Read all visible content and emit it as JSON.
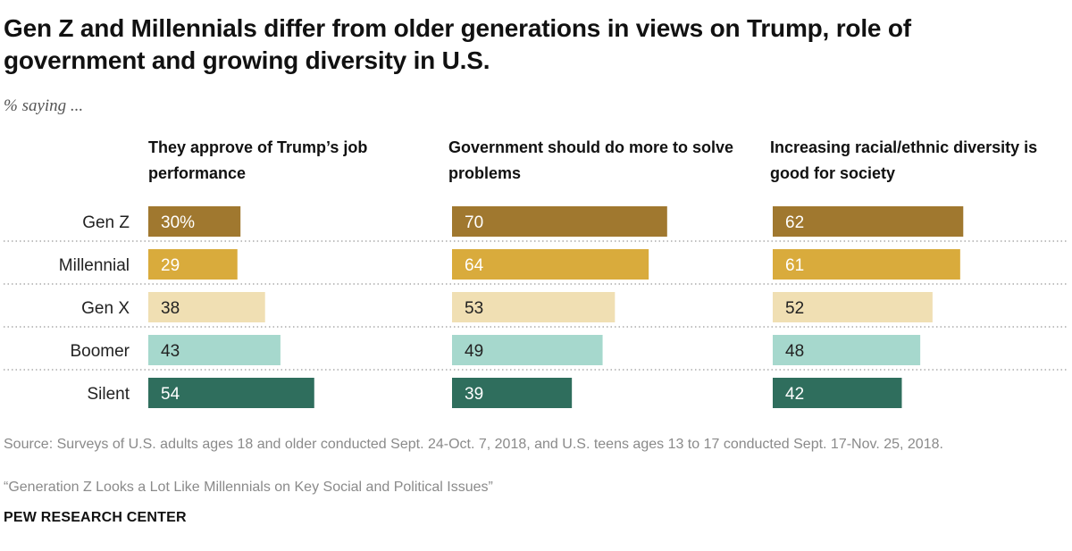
{
  "title": "Gen Z and Millennials differ from older generations in views on Trump, role of government and growing diversity in U.S.",
  "subtitle": "% saying ...",
  "source": "Source: Surveys of U.S. adults ages 18 and older conducted Sept. 24-Oct. 7, 2018, and U.S. teens ages 13 to 17 conducted Sept. 17-Nov. 25, 2018.",
  "report": "“Generation Z Looks a Lot Like Millennials on Key Social and Political Issues”",
  "organization": "PEW RESEARCH CENTER",
  "chart_data": [
    {
      "type": "bar",
      "orientation": "horizontal",
      "title": "They approve of Trump’s job performance",
      "categories": [
        "Gen Z",
        "Millennial",
        "Gen X",
        "Boomer",
        "Silent"
      ],
      "values": [
        30,
        29,
        38,
        43,
        54
      ],
      "value_labels": [
        "30%",
        "29",
        "38",
        "43",
        "54"
      ],
      "xlim": [
        0,
        100
      ]
    },
    {
      "type": "bar",
      "orientation": "horizontal",
      "title": "Government should do more to solve problems",
      "categories": [
        "Gen Z",
        "Millennial",
        "Gen X",
        "Boomer",
        "Silent"
      ],
      "values": [
        70,
        64,
        53,
        49,
        39
      ],
      "value_labels": [
        "70",
        "64",
        "53",
        "49",
        "39"
      ],
      "xlim": [
        0,
        100
      ]
    },
    {
      "type": "bar",
      "orientation": "horizontal",
      "title": "Increasing racial/ethnic diversity is good for society",
      "categories": [
        "Gen Z",
        "Millennial",
        "Gen X",
        "Boomer",
        "Silent"
      ],
      "values": [
        62,
        61,
        52,
        48,
        42
      ],
      "value_labels": [
        "62",
        "61",
        "52",
        "48",
        "42"
      ],
      "xlim": [
        0,
        100
      ]
    }
  ],
  "colors": {
    "Gen Z": "#a0782f",
    "Millennial": "#d9ab3c",
    "Gen X": "#f0dfb3",
    "Boomer": "#a6d8cd",
    "Silent": "#2f6e5d"
  },
  "label_colors": {
    "Gen Z": "#ffffff",
    "Millennial": "#ffffff",
    "Gen X": "#222222",
    "Boomer": "#222222",
    "Silent": "#ffffff"
  },
  "gridlines": "dotted row separators"
}
